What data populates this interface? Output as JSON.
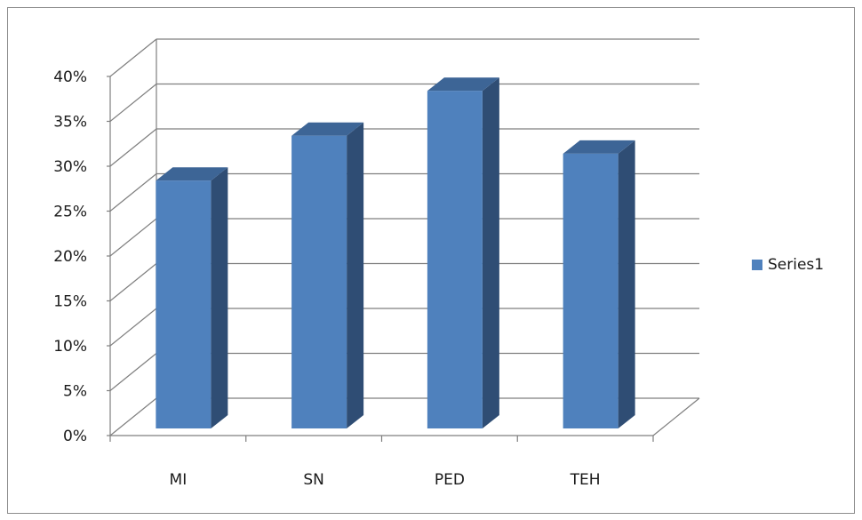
{
  "chart_data": {
    "type": "bar",
    "categories": [
      "MI",
      "SN",
      "PED",
      "TEH"
    ],
    "series": [
      {
        "name": "Series1",
        "values": [
          0.28,
          0.33,
          0.38,
          0.31
        ],
        "color": "#4f81bd"
      }
    ],
    "ylim": [
      0,
      0.4
    ],
    "yticks": [
      "0%",
      "5%",
      "10%",
      "15%",
      "20%",
      "25%",
      "30%",
      "35%",
      "40%"
    ],
    "grid": true,
    "legend_position": "right",
    "three_d": true,
    "colors": {
      "front": "#4f81bd",
      "side": "#2f4d74",
      "top": "#3d6596",
      "grid": "#7f7f7f"
    }
  }
}
